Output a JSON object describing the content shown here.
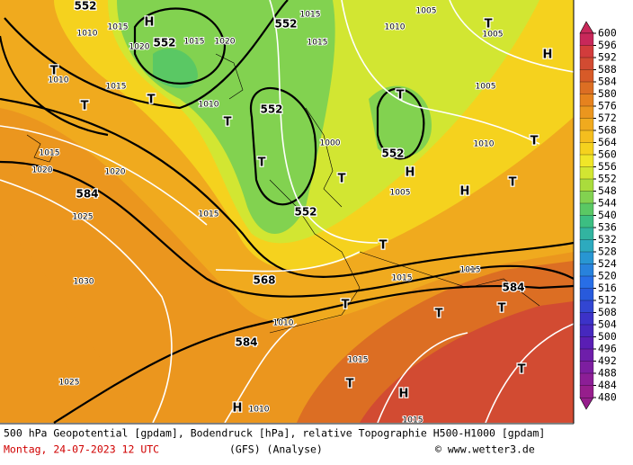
{
  "chart_data": {
    "type": "map",
    "colorbar": {
      "ticks": [
        600,
        596,
        592,
        588,
        584,
        580,
        576,
        572,
        568,
        564,
        560,
        556,
        552,
        548,
        544,
        540,
        536,
        532,
        528,
        524,
        520,
        516,
        512,
        508,
        504,
        500,
        496,
        492,
        488,
        484,
        480
      ],
      "colors": [
        "#c8285a",
        "#d23c3c",
        "#d24b32",
        "#d75a28",
        "#dc6e23",
        "#e6821e",
        "#eb961e",
        "#f0aa1e",
        "#f5be1e",
        "#f5d21e",
        "#f0e628",
        "#d2e632",
        "#aadc3c",
        "#82d250",
        "#5ac864",
        "#3cbe82",
        "#32b4a0",
        "#2daabe",
        "#2896d2",
        "#2882dc",
        "#286ee6",
        "#285adc",
        "#3246d2",
        "#3c32c8",
        "#4628be",
        "#5a1eb4",
        "#6e1eaa",
        "#7d1ea0",
        "#8c1e96",
        "#961e8c"
      ]
    },
    "labels": [
      "552",
      "552",
      "552",
      "552",
      "552",
      "552",
      "584",
      "568",
      "584",
      "584",
      "1010",
      "1015",
      "1020",
      "1015",
      "1020",
      "1015",
      "1015",
      "1010",
      "1005",
      "1005",
      "1005",
      "1010",
      "1015",
      "1010",
      "1015",
      "1020",
      "1020",
      "1025",
      "1030",
      "1025",
      "1015",
      "1000",
      "1005",
      "1010",
      "1015",
      "1015",
      "1010",
      "1015",
      "1015",
      "1010",
      "H",
      "H",
      "H",
      "H",
      "H",
      "H",
      "T",
      "T",
      "T",
      "T",
      "T",
      "T",
      "T",
      "T",
      "T",
      "T",
      "T",
      "T",
      "T",
      "T",
      "T",
      "T"
    ],
    "caption": "500 hPa Geopotential [gpdam], Bodendruck [hPa], relative Topographie H500-H1000 [gpdam]",
    "date": "Montag, 24-07-2023  12 UTC",
    "model": "(GFS)  (Analyse)",
    "credit": "© www.wetter3.de"
  }
}
